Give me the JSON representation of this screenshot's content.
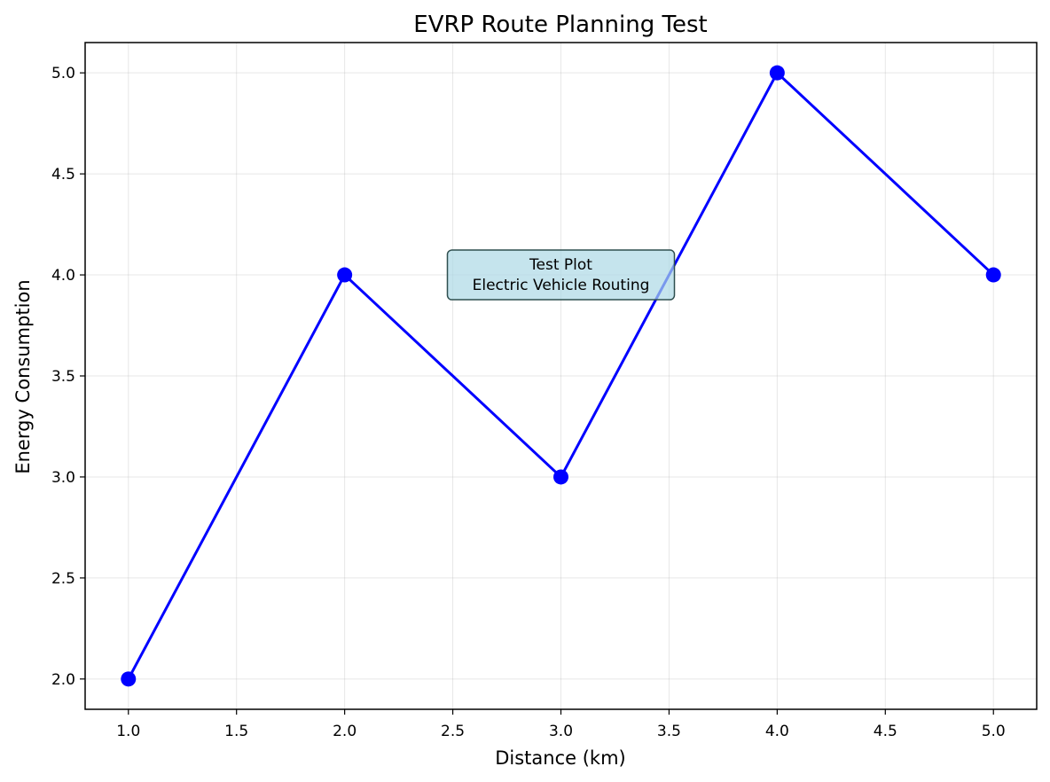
{
  "chart_data": {
    "type": "line",
    "title": "EVRP Route Planning Test",
    "xlabel": "Distance (km)",
    "ylabel": "Energy Consumption",
    "xlim": [
      0.8,
      5.2
    ],
    "ylim": [
      1.85,
      5.15
    ],
    "xticks": [
      1.0,
      1.5,
      2.0,
      2.5,
      3.0,
      3.5,
      4.0,
      4.5,
      5.0
    ],
    "xtick_labels": [
      "1.0",
      "1.5",
      "2.0",
      "2.5",
      "3.0",
      "3.5",
      "4.0",
      "4.5",
      "5.0"
    ],
    "yticks": [
      2.0,
      2.5,
      3.0,
      3.5,
      4.0,
      4.5,
      5.0
    ],
    "ytick_labels": [
      "2.0",
      "2.5",
      "3.0",
      "3.5",
      "4.0",
      "4.5",
      "5.0"
    ],
    "grid": true,
    "series": [
      {
        "x": [
          1,
          2,
          3,
          4,
          5
        ],
        "y": [
          2,
          4,
          3,
          5,
          4
        ],
        "color": "#0000ff",
        "marker": "circle"
      }
    ],
    "annotation": {
      "lines": [
        "Test Plot",
        "Electric Vehicle Routing"
      ],
      "x": 3.0,
      "y": 4.0,
      "box_fill": "#add8e6",
      "box_stroke": "#2f4f4f"
    }
  }
}
